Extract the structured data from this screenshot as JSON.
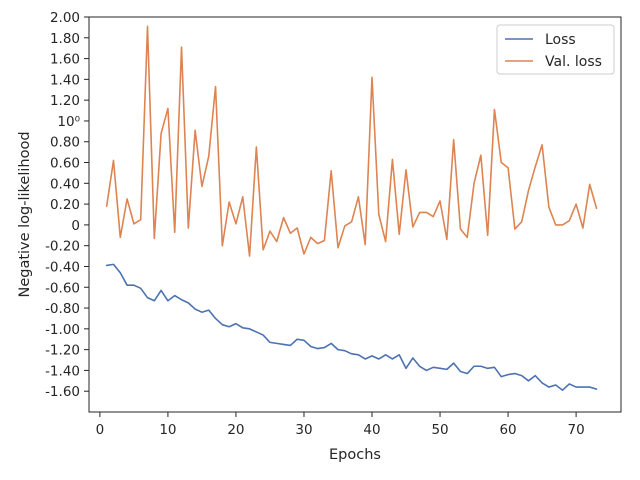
{
  "chart_data": {
    "type": "line",
    "title": "",
    "xlabel": "Epochs",
    "ylabel": "Negative log-likelihood",
    "xlim": [
      -1.6,
      76.6
    ],
    "ylim": [
      -1.8,
      2.0
    ],
    "xticks": [
      0,
      10,
      20,
      30,
      40,
      50,
      60,
      70
    ],
    "yticks": [
      {
        "value": 2.0,
        "label": "2.00"
      },
      {
        "value": 1.8,
        "label": "1.80"
      },
      {
        "value": 1.6,
        "label": "1.60"
      },
      {
        "value": 1.4,
        "label": "1.40"
      },
      {
        "value": 1.2,
        "label": "1.20"
      },
      {
        "value": 1.0,
        "label": "10⁰"
      },
      {
        "value": 0.8,
        "label": "0.80"
      },
      {
        "value": 0.6,
        "label": "0.60"
      },
      {
        "value": 0.4,
        "label": "0.40"
      },
      {
        "value": 0.2,
        "label": "0.20"
      },
      {
        "value": 0.0,
        "label": "0"
      },
      {
        "value": -0.2,
        "label": "-0.20"
      },
      {
        "value": -0.4,
        "label": "-0.40"
      },
      {
        "value": -0.6,
        "label": "-0.60"
      },
      {
        "value": -0.8,
        "label": "-0.80"
      },
      {
        "value": -1.0,
        "label": "-1.00"
      },
      {
        "value": -1.2,
        "label": "-1.20"
      },
      {
        "value": -1.4,
        "label": "-1.40"
      },
      {
        "value": -1.6,
        "label": "-1.60"
      }
    ],
    "grid": false,
    "legend_position": "top-right",
    "x": [
      1,
      2,
      3,
      4,
      5,
      6,
      7,
      8,
      9,
      10,
      11,
      12,
      13,
      14,
      15,
      16,
      17,
      18,
      19,
      20,
      21,
      22,
      23,
      24,
      25,
      26,
      27,
      28,
      29,
      30,
      31,
      32,
      33,
      34,
      35,
      36,
      37,
      38,
      39,
      40,
      41,
      42,
      43,
      44,
      45,
      46,
      47,
      48,
      49,
      50,
      51,
      52,
      53,
      54,
      55,
      56,
      57,
      58,
      59,
      60,
      61,
      62,
      63,
      64,
      65,
      66,
      67,
      68,
      69,
      70,
      71,
      72,
      73
    ],
    "series": [
      {
        "name": "Loss",
        "color": "#4c72b0",
        "values": [
          -0.39,
          -0.38,
          -0.46,
          -0.58,
          -0.58,
          -0.61,
          -0.7,
          -0.73,
          -0.63,
          -0.73,
          -0.68,
          -0.72,
          -0.75,
          -0.81,
          -0.84,
          -0.82,
          -0.9,
          -0.96,
          -0.98,
          -0.95,
          -0.99,
          -1.0,
          -1.03,
          -1.06,
          -1.13,
          -1.14,
          -1.15,
          -1.16,
          -1.1,
          -1.11,
          -1.17,
          -1.19,
          -1.18,
          -1.14,
          -1.2,
          -1.21,
          -1.24,
          -1.25,
          -1.29,
          -1.26,
          -1.29,
          -1.25,
          -1.29,
          -1.25,
          -1.38,
          -1.28,
          -1.36,
          -1.4,
          -1.37,
          -1.38,
          -1.39,
          -1.33,
          -1.41,
          -1.43,
          -1.36,
          -1.36,
          -1.38,
          -1.37,
          -1.46,
          -1.44,
          -1.43,
          -1.45,
          -1.5,
          -1.45,
          -1.52,
          -1.56,
          -1.54,
          -1.59,
          -1.53,
          -1.56,
          -1.56,
          -1.56,
          -1.58
        ]
      },
      {
        "name": "Val. loss",
        "color": "#dd8452",
        "values": [
          0.18,
          0.62,
          -0.12,
          0.25,
          0.01,
          0.05,
          1.91,
          -0.13,
          0.88,
          1.12,
          -0.07,
          1.71,
          -0.03,
          0.91,
          0.37,
          0.66,
          1.33,
          -0.2,
          0.22,
          0.01,
          0.27,
          -0.3,
          0.75,
          -0.24,
          -0.06,
          -0.16,
          0.07,
          -0.08,
          -0.03,
          -0.28,
          -0.12,
          -0.18,
          -0.15,
          0.52,
          -0.22,
          -0.01,
          0.03,
          0.27,
          -0.19,
          1.42,
          0.1,
          -0.16,
          0.63,
          -0.09,
          0.53,
          -0.02,
          0.12,
          0.12,
          0.08,
          0.23,
          -0.14,
          0.82,
          -0.04,
          -0.12,
          0.4,
          0.67,
          -0.1,
          1.11,
          0.6,
          0.55,
          -0.04,
          0.03,
          0.33,
          0.56,
          0.77,
          0.17,
          0.0,
          0.0,
          0.04,
          0.2,
          -0.03,
          0.39,
          0.16
        ]
      }
    ]
  }
}
